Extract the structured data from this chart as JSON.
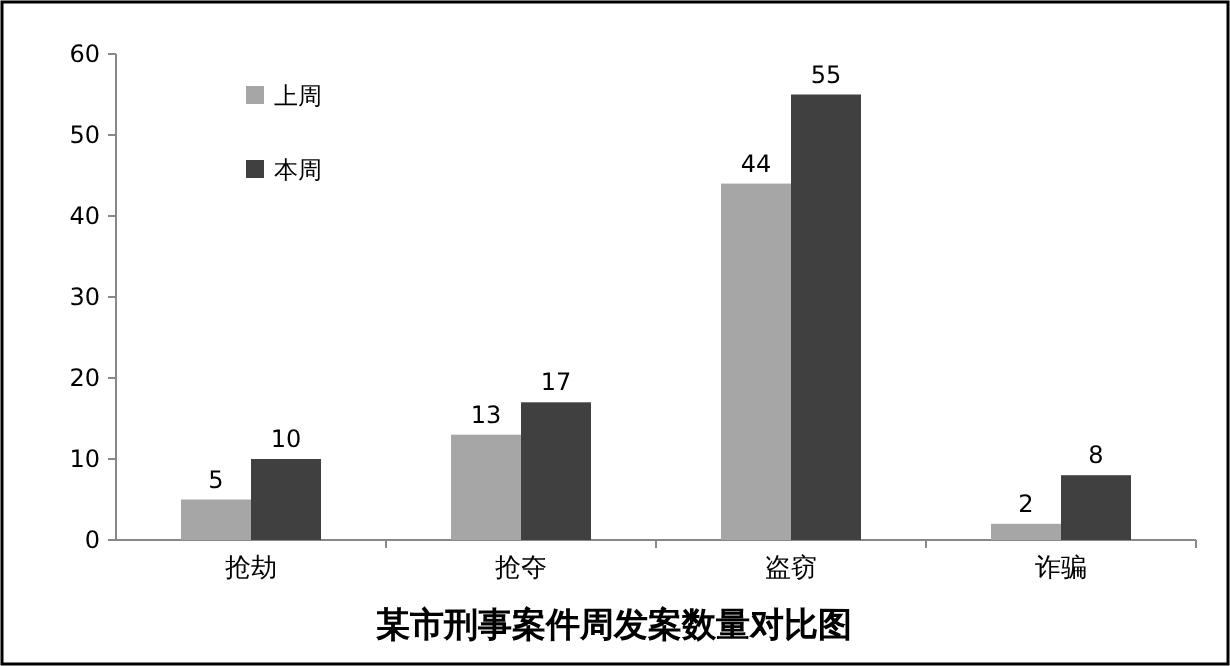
{
  "chart_data": {
    "type": "bar",
    "title": "某市刑事案件周发案数量对比图",
    "categories": [
      "抢劫",
      "抢夺",
      "盗窃",
      "诈骗"
    ],
    "series": [
      {
        "name": "上周",
        "color": "#a6a6a6",
        "values": [
          5,
          13,
          44,
          2
        ]
      },
      {
        "name": "本周",
        "color": "#404040",
        "values": [
          10,
          17,
          55,
          8
        ]
      }
    ],
    "ylim": [
      0,
      60
    ],
    "yticks": [
      0,
      10,
      20,
      30,
      40,
      50,
      60
    ],
    "data_labels": true,
    "legend": "top left"
  }
}
